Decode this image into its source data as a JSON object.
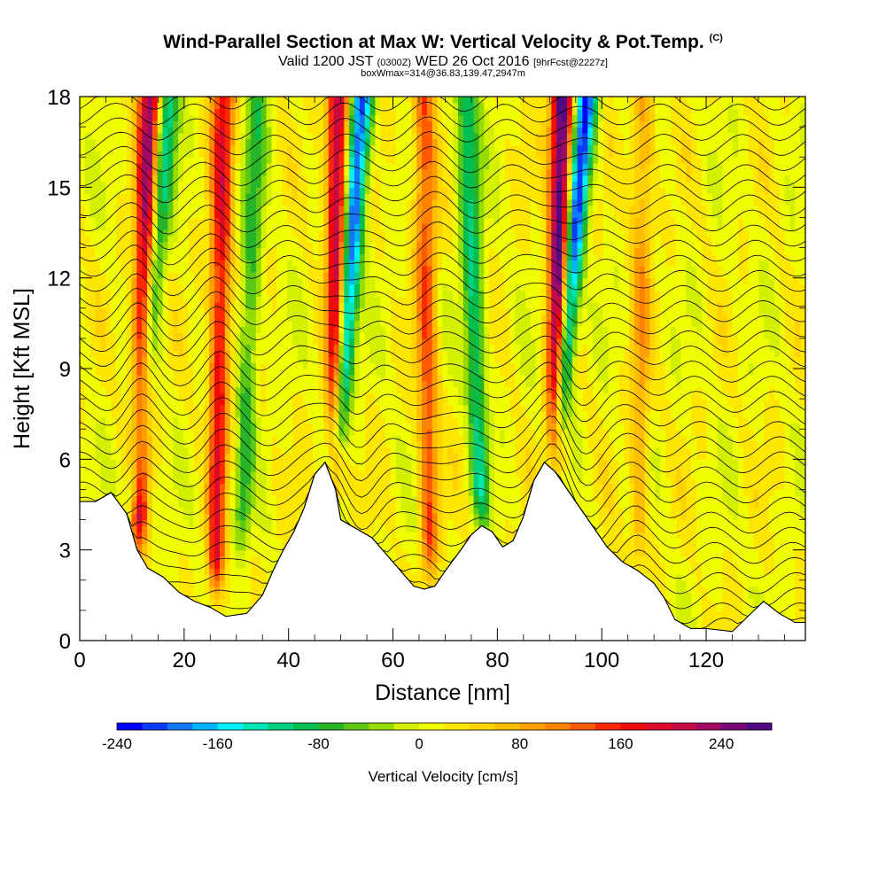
{
  "chart_data": {
    "type": "heatmap",
    "title": "Wind-Parallel Section at Max W: Vertical Velocity & Pot.Temp.",
    "title_mark": "(C)",
    "subtitle_main_a": "Valid 1200 JST",
    "subtitle_small_a": "(0300Z)",
    "subtitle_main_b": "WED 26 Oct 2016",
    "subtitle_small_b": "[9hrFcst@2227z]",
    "subtitle2": "boxWmax=314@36.83,139.47,2947m",
    "xlabel": "Distance [nm]",
    "ylabel": "Height [Kft MSL]",
    "xlim": [
      0,
      139
    ],
    "ylim": [
      0,
      18
    ],
    "x_ticks": [
      0,
      20,
      40,
      60,
      80,
      100,
      120
    ],
    "y_ticks": [
      0,
      3,
      6,
      9,
      12,
      15,
      18
    ],
    "colorbar": {
      "label": "Vertical Velocity [cm/s]",
      "range": [
        -240,
        280
      ],
      "ticks": [
        -240,
        -160,
        -80,
        0,
        80,
        160,
        240
      ],
      "colors": [
        "#0000ff",
        "#0a3cff",
        "#1478ff",
        "#00b4ff",
        "#00f0ff",
        "#00e6b4",
        "#00d282",
        "#00be50",
        "#28b428",
        "#5ac814",
        "#96dc00",
        "#d2f000",
        "#f0ff00",
        "#ffe600",
        "#ffd200",
        "#ffbe00",
        "#ffa000",
        "#ff8200",
        "#ff5a00",
        "#ff2800",
        "#f00a0a",
        "#dc0a28",
        "#c80a46",
        "#a00a64",
        "#780a78",
        "#500a82"
      ]
    },
    "terrain": [
      [
        0,
        4.6
      ],
      [
        3,
        4.6
      ],
      [
        6,
        4.9
      ],
      [
        9,
        4.2
      ],
      [
        11,
        3.0
      ],
      [
        13,
        2.4
      ],
      [
        16,
        2.1
      ],
      [
        19,
        1.6
      ],
      [
        22,
        1.3
      ],
      [
        25,
        1.1
      ],
      [
        28,
        0.8
      ],
      [
        32,
        0.9
      ],
      [
        35,
        1.5
      ],
      [
        37,
        2.3
      ],
      [
        39,
        3.0
      ],
      [
        41,
        3.6
      ],
      [
        43,
        4.4
      ],
      [
        45,
        5.5
      ],
      [
        47,
        5.9
      ],
      [
        49,
        5.0
      ],
      [
        50,
        4.0
      ],
      [
        53,
        3.7
      ],
      [
        56,
        3.4
      ],
      [
        58,
        3.0
      ],
      [
        60,
        2.6
      ],
      [
        62,
        2.2
      ],
      [
        64,
        1.8
      ],
      [
        66,
        1.7
      ],
      [
        68,
        1.8
      ],
      [
        70,
        2.3
      ],
      [
        73,
        3.0
      ],
      [
        75,
        3.5
      ],
      [
        77,
        3.8
      ],
      [
        79,
        3.6
      ],
      [
        81,
        3.1
      ],
      [
        83,
        3.3
      ],
      [
        85,
        4.1
      ],
      [
        87,
        5.3
      ],
      [
        89,
        5.9
      ],
      [
        91,
        5.6
      ],
      [
        93,
        5.1
      ],
      [
        95,
        4.6
      ],
      [
        97,
        4.1
      ],
      [
        99,
        3.6
      ],
      [
        101,
        3.1
      ],
      [
        104,
        2.6
      ],
      [
        107,
        2.3
      ],
      [
        110,
        1.9
      ],
      [
        112,
        1.4
      ],
      [
        114,
        0.7
      ],
      [
        117,
        0.4
      ],
      [
        120,
        0.4
      ],
      [
        125,
        0.3
      ],
      [
        128,
        0.8
      ],
      [
        131,
        1.3
      ],
      [
        134,
        0.9
      ],
      [
        137,
        0.6
      ],
      [
        139,
        0.6
      ]
    ],
    "updrafts": [
      {
        "x_base": 11,
        "z_base": 3.0,
        "x_top": 13.5,
        "w": 230
      },
      {
        "x_base": 26,
        "z_base": 1.5,
        "x_top": 27.5,
        "w": 160
      },
      {
        "x_base": 49,
        "z_base": 5.0,
        "x_top": 49.5,
        "w": 220
      },
      {
        "x_base": 67,
        "z_base": 2.0,
        "x_top": 66,
        "w": 120
      },
      {
        "x_base": 91,
        "z_base": 5.6,
        "x_top": 92.5,
        "w": 280
      },
      {
        "x_base": 107,
        "z_base": 2.5,
        "x_top": 108,
        "w": 70
      }
    ],
    "downdrafts": [
      {
        "x_base": 10,
        "z_base": 3.6,
        "x_top": 17,
        "w": -140
      },
      {
        "x_base": 31,
        "z_base": 3.0,
        "x_top": 34,
        "w": -80
      },
      {
        "x_base": 49,
        "z_base": 5.5,
        "x_top": 54,
        "w": -230
      },
      {
        "x_base": 77,
        "z_base": 3.8,
        "x_top": 74,
        "w": -120
      },
      {
        "x_base": 91,
        "z_base": 5.9,
        "x_top": 97,
        "w": -240
      }
    ],
    "isentropes_theta_k": [
      281,
      282,
      283,
      284,
      285,
      286,
      287,
      288,
      289,
      290,
      291,
      292,
      293,
      294,
      295,
      296,
      297,
      298,
      299,
      300,
      301,
      302,
      303,
      304,
      305,
      306,
      307,
      308,
      309,
      310,
      311,
      312,
      313,
      314,
      315,
      316
    ]
  }
}
